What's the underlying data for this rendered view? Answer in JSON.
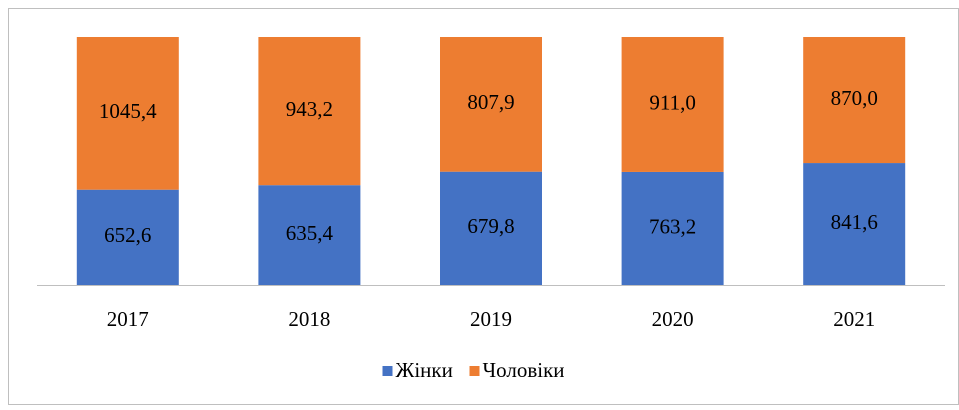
{
  "chart_data": {
    "type": "bar",
    "stack": "percent",
    "categories": [
      "2017",
      "2018",
      "2019",
      "2020",
      "2021"
    ],
    "series": [
      {
        "name": "Жінки",
        "color": "#4472c4",
        "values": [
          652.6,
          635.4,
          679.8,
          763.2,
          841.6
        ],
        "value_labels": [
          "652,6",
          "635,4",
          "679,8",
          "763,2",
          "841,6"
        ]
      },
      {
        "name": "Чоловіки",
        "color": "#ed7d31",
        "values": [
          1045.4,
          943.2,
          807.9,
          911.0,
          870.0
        ],
        "value_labels": [
          "1045,4",
          "943,2",
          "807,9",
          "911,0",
          "870,0"
        ]
      }
    ],
    "legend": "bottom"
  }
}
